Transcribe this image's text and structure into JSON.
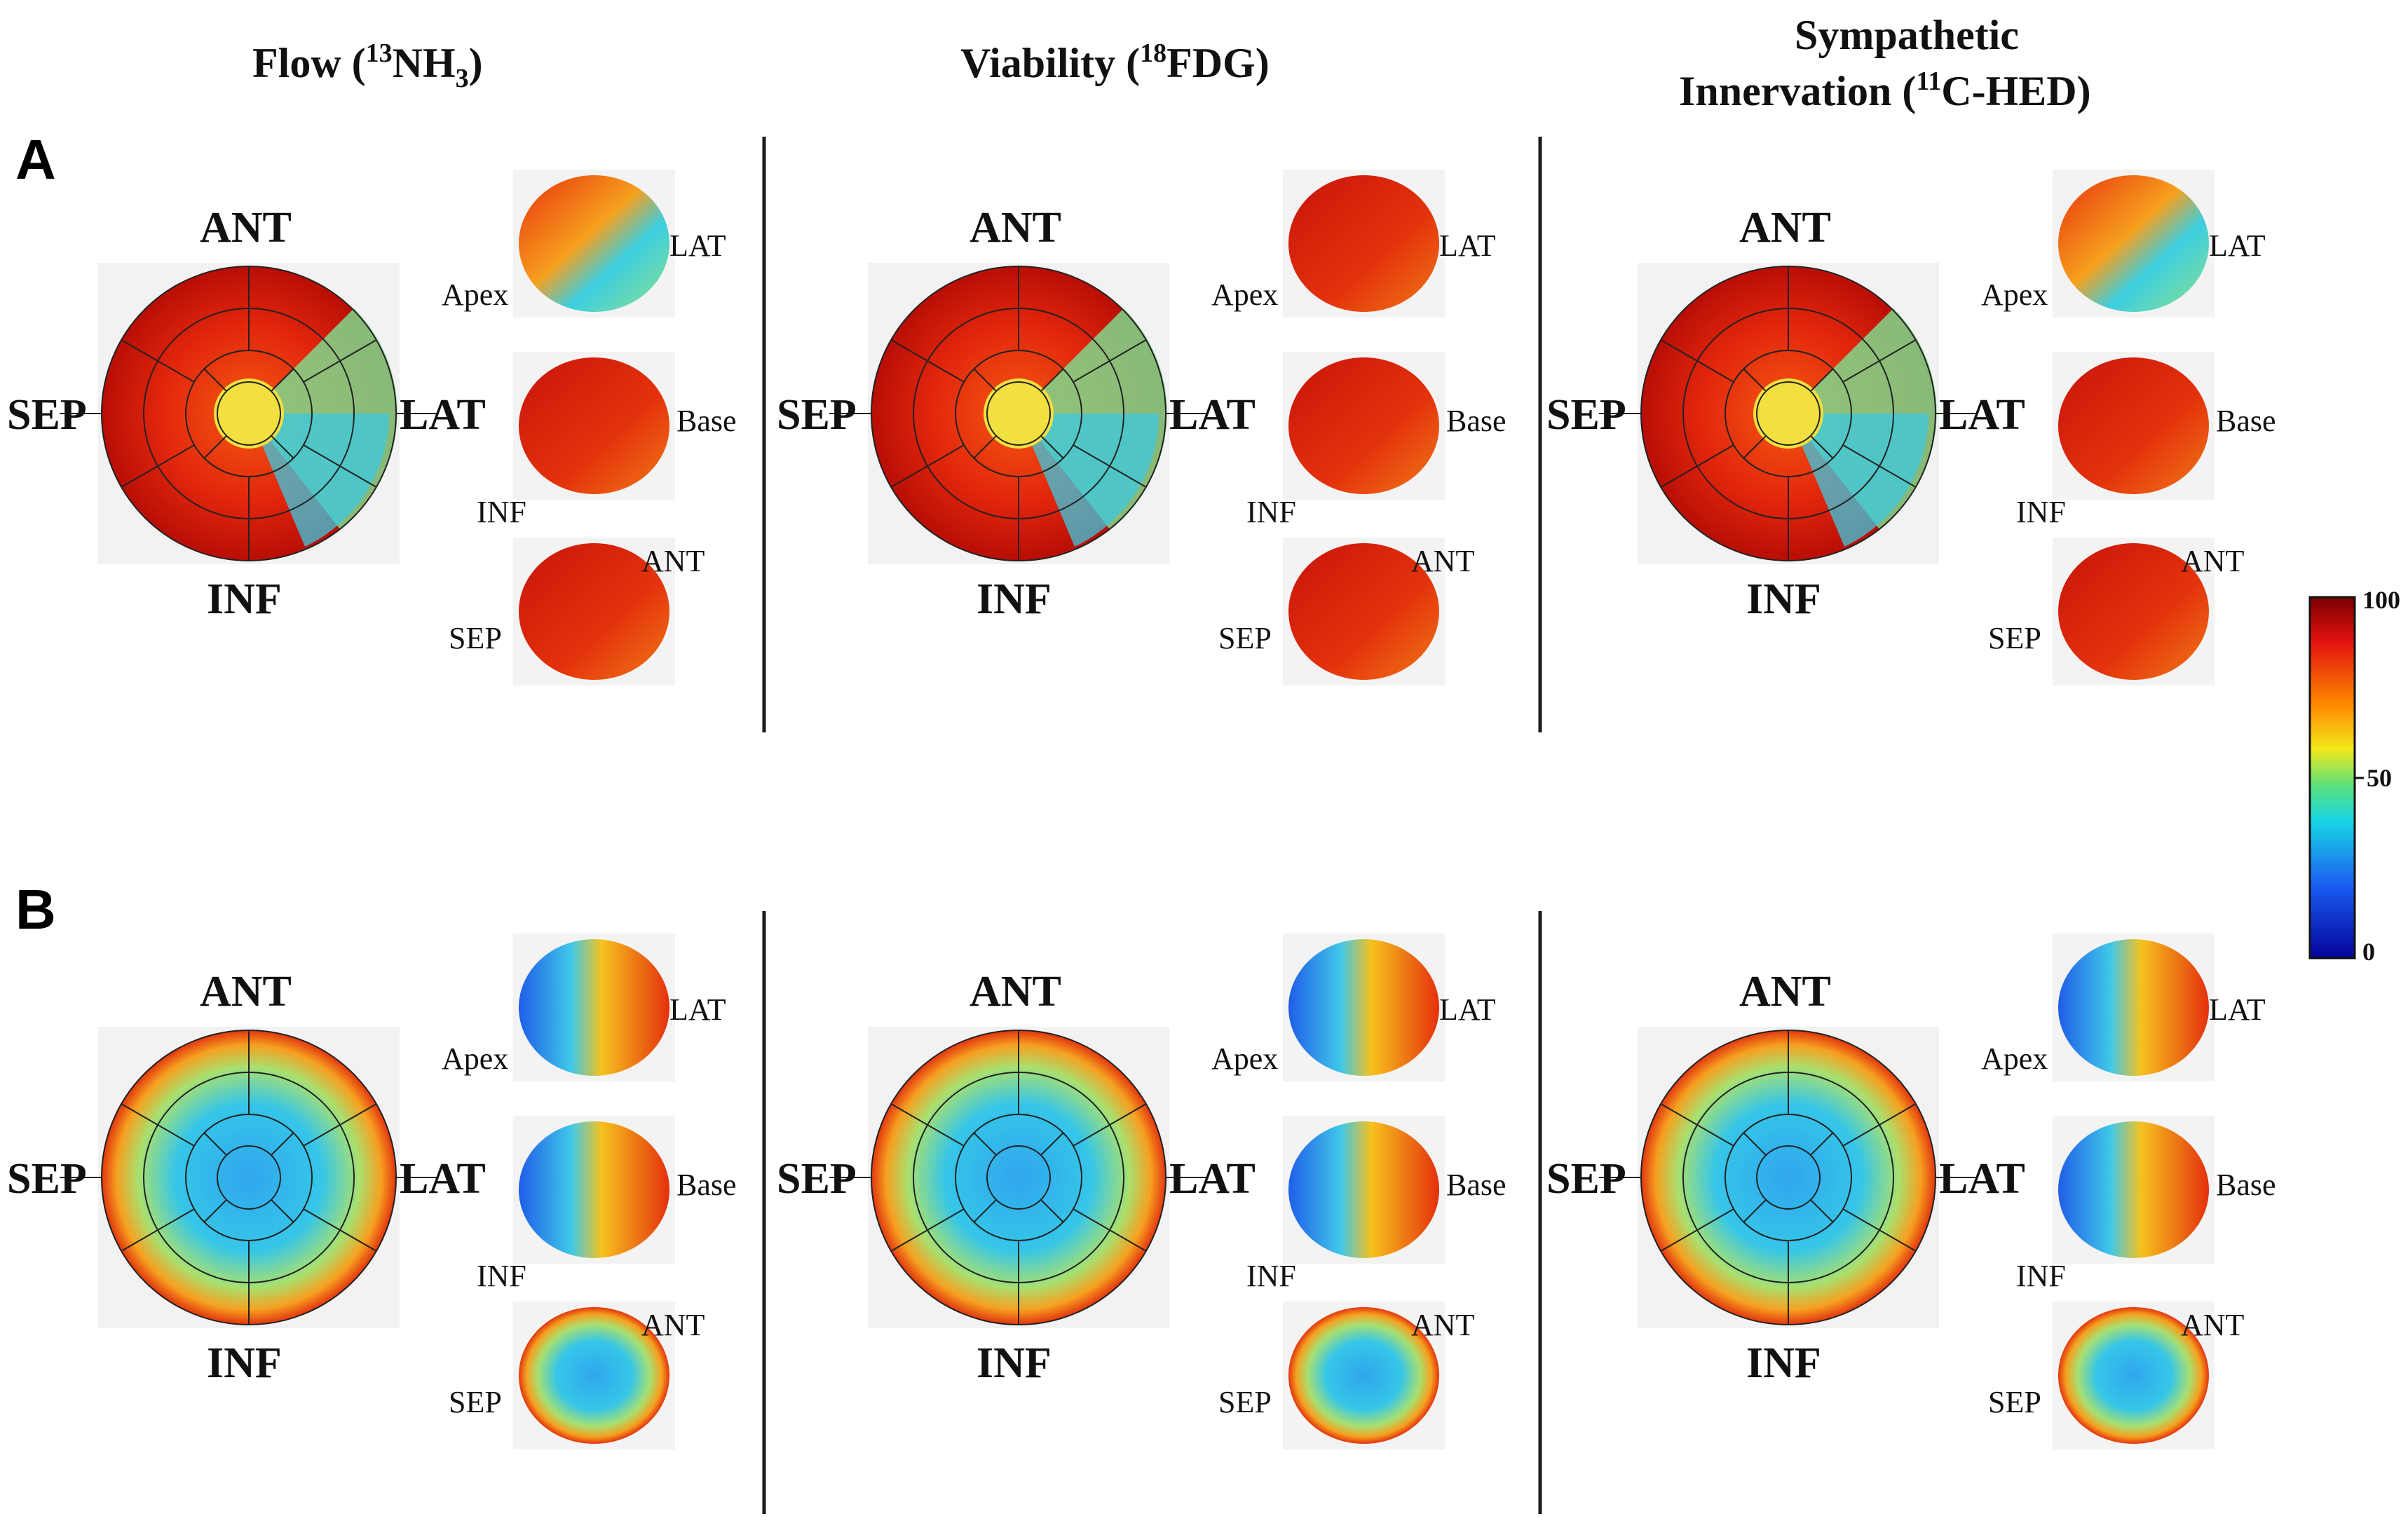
{
  "columns": [
    {
      "pre": "Flow (",
      "iso": "13",
      "mid": "NH",
      "sub": "3",
      "post": ")"
    },
    {
      "pre": "Viability (",
      "iso": "18",
      "mid": "FDG)",
      "sub": "",
      "post": ""
    },
    {
      "line1": "Sympathetic",
      "pre": "Innervation (",
      "iso": "11",
      "mid": "C-HED)",
      "sub": "",
      "post": ""
    }
  ],
  "panels": [
    "A",
    "B"
  ],
  "polar_labels": {
    "ant": "ANT",
    "inf": "INF",
    "sep": "SEP",
    "lat": "LAT"
  },
  "render_labels": {
    "apex": "Apex",
    "lat": "LAT",
    "base": "Base",
    "inf": "INF",
    "ant": "ANT",
    "sep": "SEP"
  },
  "colorbar": {
    "max": "100",
    "mid": "50",
    "min": "0"
  },
  "colors": {
    "high": "#d41a0a",
    "mid": "#3ad6d6",
    "low": "#0a10b8",
    "divider": "#1a1a1a"
  }
}
